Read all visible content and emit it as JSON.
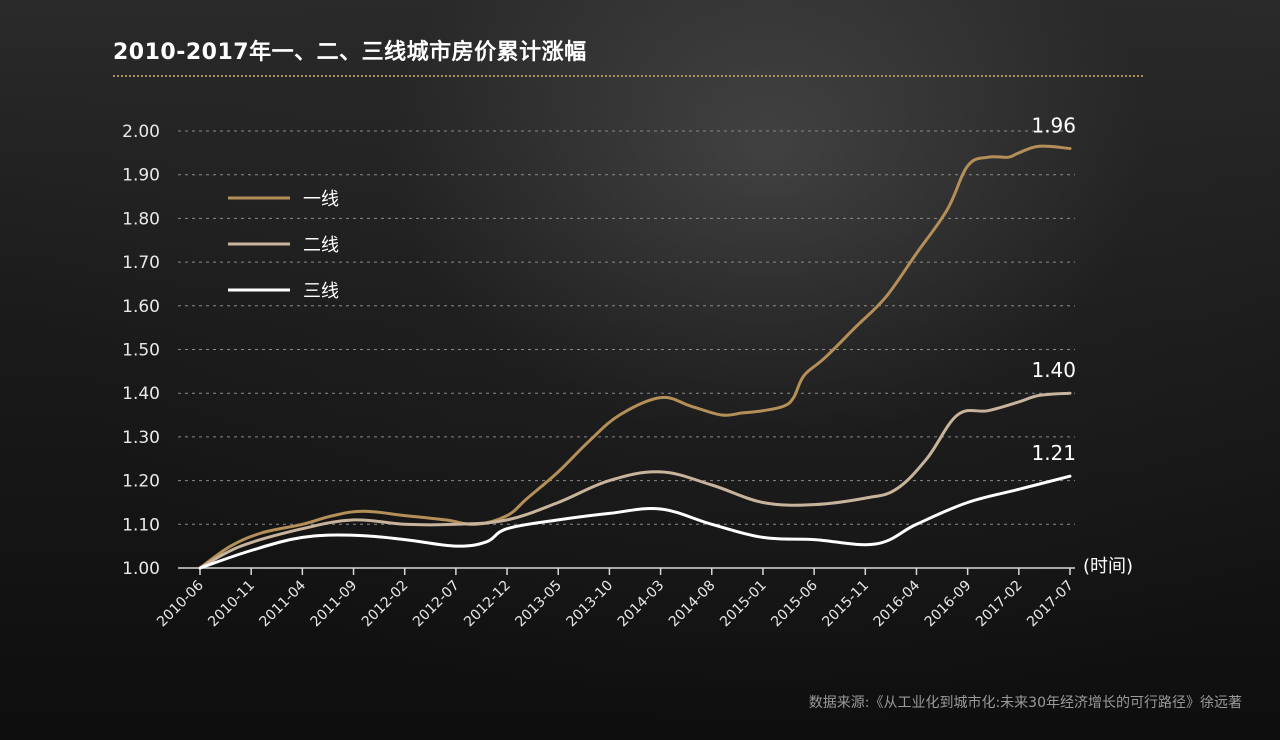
{
  "source": "数据来源:《从工业化到城市化:未来30年经济增长的可行路径》徐远著",
  "colors": {
    "background": "#121212",
    "divider": "#b08c55",
    "grid": "#8a8a8a"
  },
  "chart_data": {
    "type": "line",
    "title": "2010-2017年一、二、三线城市房价累计涨幅",
    "xlabel": "(时间)",
    "ylabel": "",
    "ylim": [
      1.0,
      2.0
    ],
    "yticks": [
      "1.00",
      "1.10",
      "1.20",
      "1.30",
      "1.40",
      "1.50",
      "1.60",
      "1.70",
      "1.80",
      "1.90",
      "2.00"
    ],
    "xticks": [
      "2010-06",
      "2010-11",
      "2011-04",
      "2011-09",
      "2012-02",
      "2012-07",
      "2012-12",
      "2013-05",
      "2013-10",
      "2014-03",
      "2014-08",
      "2015-01",
      "2015-06",
      "2015-11",
      "2016-04",
      "2016-09",
      "2017-02",
      "2017-07"
    ],
    "grid": "horizontal dashed",
    "legend_position": "top-left",
    "series": [
      {
        "name": "一线",
        "color": "#b58f58",
        "end_label": "1.96",
        "points": [
          [
            "2010-06",
            1.0
          ],
          [
            "2010-09",
            1.05
          ],
          [
            "2010-12",
            1.08
          ],
          [
            "2011-04",
            1.1
          ],
          [
            "2011-07",
            1.12
          ],
          [
            "2011-10",
            1.13
          ],
          [
            "2012-02",
            1.12
          ],
          [
            "2012-06",
            1.11
          ],
          [
            "2012-09",
            1.1
          ],
          [
            "2012-12",
            1.12
          ],
          [
            "2013-02",
            1.16
          ],
          [
            "2013-05",
            1.22
          ],
          [
            "2013-08",
            1.29
          ],
          [
            "2013-11",
            1.35
          ],
          [
            "2014-03",
            1.39
          ],
          [
            "2014-06",
            1.37
          ],
          [
            "2014-09",
            1.35
          ],
          [
            "2014-11",
            1.355
          ],
          [
            "2015-01",
            1.36
          ],
          [
            "2015-03",
            1.37
          ],
          [
            "2015-04",
            1.39
          ],
          [
            "2015-05",
            1.44
          ],
          [
            "2015-07",
            1.48
          ],
          [
            "2015-10",
            1.55
          ],
          [
            "2016-01",
            1.62
          ],
          [
            "2016-04",
            1.72
          ],
          [
            "2016-07",
            1.82
          ],
          [
            "2016-09",
            1.92
          ],
          [
            "2016-11",
            1.94
          ],
          [
            "2017-01",
            1.94
          ],
          [
            "2017-02",
            1.95
          ],
          [
            "2017-04",
            1.965
          ],
          [
            "2017-07",
            1.96
          ]
        ]
      },
      {
        "name": "二线",
        "color": "#c8b49c",
        "end_label": "1.40",
        "points": [
          [
            "2010-06",
            1.0
          ],
          [
            "2010-10",
            1.05
          ],
          [
            "2011-04",
            1.09
          ],
          [
            "2011-09",
            1.11
          ],
          [
            "2012-02",
            1.1
          ],
          [
            "2012-07",
            1.1
          ],
          [
            "2012-12",
            1.11
          ],
          [
            "2013-05",
            1.15
          ],
          [
            "2013-10",
            1.2
          ],
          [
            "2014-03",
            1.22
          ],
          [
            "2014-08",
            1.19
          ],
          [
            "2015-01",
            1.15
          ],
          [
            "2015-06",
            1.145
          ],
          [
            "2015-11",
            1.16
          ],
          [
            "2016-02",
            1.18
          ],
          [
            "2016-05",
            1.25
          ],
          [
            "2016-08",
            1.35
          ],
          [
            "2016-11",
            1.36
          ],
          [
            "2017-02",
            1.38
          ],
          [
            "2017-04",
            1.395
          ],
          [
            "2017-07",
            1.4
          ]
        ]
      },
      {
        "name": "三线",
        "color": "#ffffff",
        "end_label": "1.21",
        "points": [
          [
            "2010-06",
            1.0
          ],
          [
            "2010-11",
            1.04
          ],
          [
            "2011-04",
            1.07
          ],
          [
            "2011-09",
            1.075
          ],
          [
            "2012-02",
            1.065
          ],
          [
            "2012-07",
            1.05
          ],
          [
            "2012-10",
            1.06
          ],
          [
            "2012-12",
            1.09
          ],
          [
            "2013-05",
            1.11
          ],
          [
            "2013-10",
            1.125
          ],
          [
            "2014-03",
            1.135
          ],
          [
            "2014-08",
            1.1
          ],
          [
            "2015-01",
            1.07
          ],
          [
            "2015-06",
            1.065
          ],
          [
            "2015-12",
            1.055
          ],
          [
            "2016-04",
            1.1
          ],
          [
            "2016-09",
            1.15
          ],
          [
            "2017-02",
            1.18
          ],
          [
            "2017-07",
            1.21
          ]
        ]
      }
    ]
  }
}
